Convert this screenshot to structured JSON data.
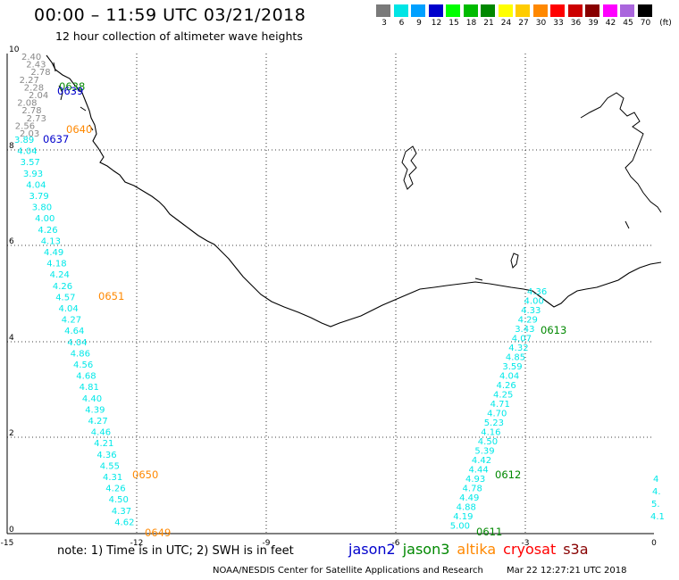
{
  "header": {
    "title": "00:00 – 11:59 UTC 03/21/2018",
    "subtitle": "12 hour collection of altimeter wave heights"
  },
  "legend": {
    "unit": "(ft)",
    "bins": [
      {
        "label": "3",
        "color": "#7a7a7a"
      },
      {
        "label": "6",
        "color": "#00e5e5"
      },
      {
        "label": "9",
        "color": "#00a0ff"
      },
      {
        "label": "12",
        "color": "#0000cc"
      },
      {
        "label": "15",
        "color": "#00ff00"
      },
      {
        "label": "18",
        "color": "#00bb00"
      },
      {
        "label": "21",
        "color": "#008800"
      },
      {
        "label": "24",
        "color": "#ffff00"
      },
      {
        "label": "27",
        "color": "#ffcc00"
      },
      {
        "label": "30",
        "color": "#ff8800"
      },
      {
        "label": "33",
        "color": "#ff0000"
      },
      {
        "label": "36",
        "color": "#cc0000"
      },
      {
        "label": "39",
        "color": "#880000"
      },
      {
        "label": "42",
        "color": "#ff00ff"
      },
      {
        "label": "45",
        "color": "#aa66dd"
      },
      {
        "label": "70",
        "color": "#000000"
      }
    ]
  },
  "axes": {
    "x_ticks": [
      "-15",
      "-12",
      "-9",
      "-6",
      "-3",
      "0"
    ],
    "y_ticks": [
      "0",
      "2",
      "4",
      "6",
      "8",
      "10"
    ]
  },
  "passes": {
    "left_track": {
      "gray_values": [
        "2.40",
        "2.43",
        "2.78",
        "2.27",
        "2.28",
        "2.04",
        "2.08",
        "2.78",
        "2.73",
        "2.56",
        "2.03"
      ],
      "cyan_values": [
        "3.89",
        "4.04",
        "3.57",
        "3.93",
        "4.04",
        "3.79",
        "3.80",
        "4.00",
        "4.26",
        "4.13",
        "4.49",
        "4.18",
        "4.24",
        "4.26",
        "4.57",
        "4.04",
        "4.27",
        "4.64",
        "4.04",
        "4.86",
        "4.56",
        "4.68",
        "4.81",
        "4.40",
        "4.39",
        "4.27",
        "4.46",
        "4.21",
        "4.36",
        "4.55",
        "4.31",
        "4.26",
        "4.50",
        "4.37",
        "4.62"
      ],
      "time_labels": [
        {
          "text": "0638",
          "color": "#008800"
        },
        {
          "text": "0639",
          "color": "#0000cc"
        },
        {
          "text": "0640",
          "color": "#ff8800"
        },
        {
          "text": "0637",
          "color": "#0000cc"
        },
        {
          "text": "0651",
          "color": "#ff8800"
        },
        {
          "text": "0650",
          "color": "#ff8800"
        },
        {
          "text": "0649",
          "color": "#ff8800"
        }
      ]
    },
    "right_track": {
      "cyan_values": [
        "4.36",
        "4.00",
        "4.33",
        "4.29",
        "3.43",
        "4.07",
        "4.32",
        "4.85",
        "3.59",
        "4.04",
        "4.26",
        "4.25",
        "4.71",
        "4.70",
        "5.23",
        "4.16",
        "4.50",
        "5.39",
        "4.42",
        "4.44",
        "4.93",
        "4.78",
        "4.49",
        "4.88",
        "4.19",
        "5.00"
      ],
      "time_labels": [
        {
          "text": "0613",
          "color": "#008800"
        },
        {
          "text": "0612",
          "color": "#008800"
        },
        {
          "text": "0611",
          "color": "#008800"
        }
      ]
    },
    "edge_track": {
      "cyan_values": [
        "4",
        "4.",
        "5.",
        "4.1"
      ]
    }
  },
  "footer": {
    "note": "note:  1) Time is in UTC;  2) SWH is in feet",
    "satellites": [
      {
        "name": "jason2",
        "color": "#0000cc"
      },
      {
        "name": "jason3",
        "color": "#008800"
      },
      {
        "name": "altika",
        "color": "#ff8800"
      },
      {
        "name": "cryosat",
        "color": "#ff0000"
      },
      {
        "name": "s3a",
        "color": "#880000"
      }
    ],
    "credit": "NOAA/NESDIS Center for Satellite Applications and Research",
    "timestamp": "Mar 22 12:27:21 UTC 2018"
  }
}
